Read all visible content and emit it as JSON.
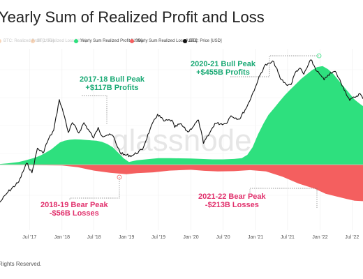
{
  "title": "Yearly Sum of Realized Profit and Loss",
  "legend": [
    {
      "label": "BTC: Realized Profit [USD]",
      "color": "#f2b98a",
      "faded": true
    },
    {
      "label": "BTC: Realized Loss [USD]",
      "color": "#f2b98a",
      "faded": true
    },
    {
      "label": "Yearly Sum Realized Profit [USD]",
      "color": "#2ee07e",
      "faded": false
    },
    {
      "label": "Yearly Sum Realized Loss [USD]",
      "color": "#f45f5f",
      "faded": false
    },
    {
      "label": "BTC: Price [USD]",
      "color": "#111111",
      "faded": false
    }
  ],
  "watermark": "glassnode",
  "annotations": {
    "bull_2017": {
      "line1": "2017-18 Bull Peak",
      "line2": "+$117B Profits"
    },
    "bull_2020": {
      "line1": "2020-21 Bull Peak",
      "line2": "+$455B Profits"
    },
    "bear_2018": {
      "line1": "2018-19 Bear Peak",
      "line2": "-$56B Losses"
    },
    "bear_2021": {
      "line1": "2021-22 Bear Peak",
      "line2": "-$213B Losses"
    }
  },
  "footer": "Rights Reserved.",
  "chart_data": {
    "type": "area",
    "title": "Yearly Sum of Realized Profit and Loss",
    "x_ticks": [
      "Jul '17",
      "Jan '18",
      "Jul '18",
      "Jan '19",
      "Jul '19",
      "Jan '20",
      "Jul '20",
      "Jan '21",
      "Jul '21",
      "Jan '22",
      "Jul '22"
    ],
    "xlim": [
      "2017-01-15",
      "2022-09-01"
    ],
    "grid": true,
    "profit_ylim_billion_usd": [
      0,
      470
    ],
    "loss_ylim_billion_usd": [
      -260,
      0
    ],
    "series": [
      {
        "name": "Yearly Sum Realized Profit [USD]",
        "unit": "billion USD",
        "color": "#2ee07e",
        "x": [
          "2017-01-15",
          "2017-03-01",
          "2017-05-01",
          "2017-06-01",
          "2017-07-01",
          "2017-08-01",
          "2017-09-01",
          "2017-10-01",
          "2017-11-01",
          "2017-12-01",
          "2017-12-20",
          "2018-01-15",
          "2018-02-15",
          "2018-03-15",
          "2018-04-15",
          "2018-05-15",
          "2018-06-15",
          "2018-07-15",
          "2018-08-15",
          "2018-09-15",
          "2018-10-15",
          "2018-11-15",
          "2018-12-15",
          "2019-01-15",
          "2019-03-01",
          "2019-05-01",
          "2019-07-01",
          "2019-09-01",
          "2019-11-01",
          "2020-01-01",
          "2020-03-01",
          "2020-05-01",
          "2020-07-01",
          "2020-09-01",
          "2020-10-15",
          "2020-11-15",
          "2020-12-15",
          "2021-01-15",
          "2021-02-15",
          "2021-03-15",
          "2021-04-15",
          "2021-05-15",
          "2021-06-15",
          "2021-07-15",
          "2021-08-15",
          "2021-09-15",
          "2021-10-15",
          "2021-11-15",
          "2021-12-15",
          "2022-01-15",
          "2022-02-15",
          "2022-03-15",
          "2022-04-15",
          "2022-05-15",
          "2022-06-15",
          "2022-07-15",
          "2022-08-15",
          "2022-09-01"
        ],
        "values": [
          3,
          6,
          12,
          18,
          25,
          32,
          42,
          55,
          70,
          90,
          102,
          110,
          115,
          117,
          116,
          114,
          112,
          110,
          105,
          95,
          80,
          55,
          30,
          12,
          20,
          25,
          30,
          30,
          29,
          28,
          26,
          24,
          24,
          26,
          30,
          45,
          80,
          140,
          190,
          230,
          260,
          290,
          320,
          345,
          370,
          395,
          415,
          435,
          450,
          455,
          440,
          420,
          390,
          360,
          330,
          300,
          280,
          270
        ]
      },
      {
        "name": "Yearly Sum Realized Loss [USD]",
        "unit": "billion USD",
        "color": "#f45f5f",
        "x": [
          "2017-01-15",
          "2017-07-01",
          "2018-01-01",
          "2018-04-01",
          "2018-07-01",
          "2018-10-01",
          "2019-01-01",
          "2019-03-01",
          "2019-06-01",
          "2019-09-01",
          "2020-01-01",
          "2020-03-15",
          "2020-06-01",
          "2020-09-01",
          "2020-12-01",
          "2021-03-01",
          "2021-06-01",
          "2021-09-01",
          "2021-12-01",
          "2022-02-01",
          "2022-04-01",
          "2022-06-01",
          "2022-07-15",
          "2022-09-01"
        ],
        "values": [
          -2,
          -3,
          -5,
          -15,
          -35,
          -48,
          -56,
          -50,
          -45,
          -35,
          -30,
          -36,
          -40,
          -38,
          -32,
          -40,
          -70,
          -110,
          -140,
          -170,
          -185,
          -200,
          -210,
          -213
        ]
      },
      {
        "name": "BTC: Price [USD]",
        "unit": "USD (log scale)",
        "color": "#111111",
        "log_scale": true,
        "x": [
          "2017-01-15",
          "2017-03-01",
          "2017-05-01",
          "2017-06-15",
          "2017-07-15",
          "2017-08-15",
          "2017-09-15",
          "2017-10-15",
          "2017-11-15",
          "2017-12-17",
          "2018-01-15",
          "2018-02-06",
          "2018-03-01",
          "2018-04-06",
          "2018-05-05",
          "2018-06-29",
          "2018-07-25",
          "2018-08-15",
          "2018-09-15",
          "2018-10-15",
          "2018-11-25",
          "2018-12-15",
          "2019-02-01",
          "2019-04-01",
          "2019-05-15",
          "2019-06-26",
          "2019-08-01",
          "2019-09-15",
          "2019-10-01",
          "2019-11-01",
          "2019-12-15",
          "2020-02-13",
          "2020-03-12",
          "2020-04-15",
          "2020-05-15",
          "2020-07-15",
          "2020-08-15",
          "2020-10-01",
          "2020-11-15",
          "2020-12-31",
          "2021-01-15",
          "2021-02-20",
          "2021-04-14",
          "2021-05-20",
          "2021-06-22",
          "2021-07-20",
          "2021-08-15",
          "2021-09-07",
          "2021-10-01",
          "2021-11-10",
          "2021-12-15",
          "2022-01-24",
          "2022-02-15",
          "2022-03-28",
          "2022-05-12",
          "2022-06-18",
          "2022-07-15",
          "2022-08-15",
          "2022-09-01"
        ],
        "values": [
          800,
          1100,
          1500,
          2700,
          2000,
          4300,
          3700,
          5600,
          7500,
          19500,
          11500,
          7000,
          9500,
          6900,
          9500,
          5900,
          8200,
          6300,
          6500,
          6400,
          3800,
          3500,
          3400,
          4100,
          7800,
          12400,
          10000,
          10300,
          8200,
          9200,
          7100,
          10300,
          5000,
          6800,
          9300,
          9200,
          11800,
          10600,
          16000,
          29000,
          36000,
          56000,
          63500,
          38000,
          31500,
          31000,
          46000,
          52000,
          43000,
          67500,
          47000,
          36000,
          42000,
          47000,
          29000,
          19000,
          21000,
          23500,
          20000
        ]
      }
    ]
  }
}
